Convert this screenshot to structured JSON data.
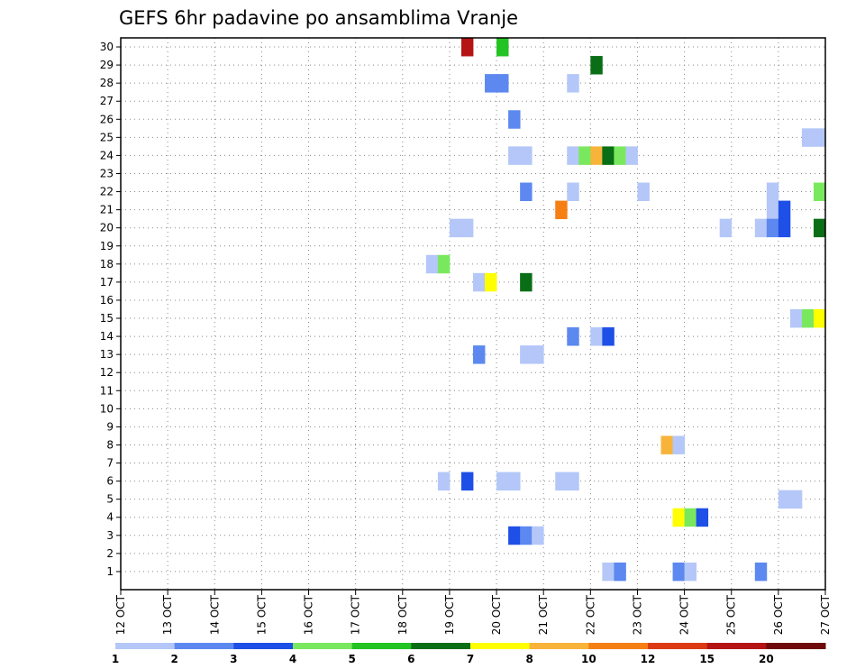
{
  "chart_data": {
    "type": "heatmap",
    "title": "GEFS 6hr padavine po ansamblima Vranje",
    "xlabel": "",
    "ylabel": "",
    "x_ticks": [
      "12 OCT",
      "13 OCT",
      "14 OCT",
      "15 OCT",
      "16 OCT",
      "17 OCT",
      "18 OCT",
      "19 OCT",
      "20 OCT",
      "21 OCT",
      "22 OCT",
      "23 OCT",
      "24 OCT",
      "25 OCT",
      "26 OCT",
      "27 OCT"
    ],
    "x_step_hours": 6,
    "y_ticks": [
      1,
      2,
      3,
      4,
      5,
      6,
      7,
      8,
      9,
      10,
      11,
      12,
      13,
      14,
      15,
      16,
      17,
      18,
      19,
      20,
      21,
      22,
      23,
      24,
      25,
      26,
      27,
      28,
      29,
      30
    ],
    "ylim": [
      0,
      30
    ],
    "grid": true,
    "legend": {
      "placement": "bottom",
      "boundaries": [
        "1",
        "2",
        "3",
        "4",
        "5",
        "6",
        "7",
        "8",
        "10",
        "12",
        "15",
        "20"
      ],
      "colors": [
        "#b4c7f8",
        "#5c88f0",
        "#1e4fe6",
        "#7ae85e",
        "#22c322",
        "#0a6e16",
        "#ffff00",
        "#f7b33a",
        "#f57f13",
        "#dc3a14",
        "#b41414",
        "#6e0a0a"
      ]
    },
    "cells": [
      {
        "member": 30,
        "date": "19 OCT",
        "hour": 6,
        "color": "#b41414"
      },
      {
        "member": 30,
        "date": "20 OCT",
        "hour": 0,
        "color": "#22c322"
      },
      {
        "member": 29,
        "date": "22 OCT",
        "hour": 0,
        "color": "#0a6e16"
      },
      {
        "member": 28,
        "date": "19 OCT",
        "hour": 18,
        "color": "#5c88f0"
      },
      {
        "member": 28,
        "date": "20 OCT",
        "hour": 0,
        "color": "#5c88f0"
      },
      {
        "member": 28,
        "date": "21 OCT",
        "hour": 12,
        "color": "#b4c7f8"
      },
      {
        "member": 26,
        "date": "20 OCT",
        "hour": 6,
        "color": "#5c88f0"
      },
      {
        "member": 25,
        "date": "26 OCT",
        "hour": 12,
        "color": "#b4c7f8"
      },
      {
        "member": 25,
        "date": "26 OCT",
        "hour": 18,
        "color": "#b4c7f8"
      },
      {
        "member": 24,
        "date": "20 OCT",
        "hour": 6,
        "color": "#b4c7f8"
      },
      {
        "member": 24,
        "date": "20 OCT",
        "hour": 12,
        "color": "#b4c7f8"
      },
      {
        "member": 24,
        "date": "21 OCT",
        "hour": 12,
        "color": "#b4c7f8"
      },
      {
        "member": 24,
        "date": "21 OCT",
        "hour": 18,
        "color": "#7ae85e"
      },
      {
        "member": 24,
        "date": "22 OCT",
        "hour": 0,
        "color": "#f7b33a"
      },
      {
        "member": 24,
        "date": "22 OCT",
        "hour": 6,
        "color": "#0a6e16"
      },
      {
        "member": 24,
        "date": "22 OCT",
        "hour": 12,
        "color": "#7ae85e"
      },
      {
        "member": 24,
        "date": "22 OCT",
        "hour": 18,
        "color": "#b4c7f8"
      },
      {
        "member": 22,
        "date": "20 OCT",
        "hour": 12,
        "color": "#5c88f0"
      },
      {
        "member": 22,
        "date": "21 OCT",
        "hour": 12,
        "color": "#b4c7f8"
      },
      {
        "member": 22,
        "date": "23 OCT",
        "hour": 0,
        "color": "#b4c7f8"
      },
      {
        "member": 22,
        "date": "25 OCT",
        "hour": 18,
        "color": "#b4c7f8"
      },
      {
        "member": 22,
        "date": "26 OCT",
        "hour": 18,
        "color": "#7ae85e"
      },
      {
        "member": 21,
        "date": "21 OCT",
        "hour": 6,
        "color": "#f57f13"
      },
      {
        "member": 21,
        "date": "25 OCT",
        "hour": 18,
        "color": "#b4c7f8"
      },
      {
        "member": 21,
        "date": "26 OCT",
        "hour": 0,
        "color": "#1e4fe6"
      },
      {
        "member": 20,
        "date": "19 OCT",
        "hour": 0,
        "color": "#b4c7f8"
      },
      {
        "member": 20,
        "date": "19 OCT",
        "hour": 6,
        "color": "#b4c7f8"
      },
      {
        "member": 20,
        "date": "24 OCT",
        "hour": 18,
        "color": "#b4c7f8"
      },
      {
        "member": 20,
        "date": "25 OCT",
        "hour": 12,
        "color": "#b4c7f8"
      },
      {
        "member": 20,
        "date": "25 OCT",
        "hour": 18,
        "color": "#5c88f0"
      },
      {
        "member": 20,
        "date": "26 OCT",
        "hour": 0,
        "color": "#1e4fe6"
      },
      {
        "member": 20,
        "date": "26 OCT",
        "hour": 18,
        "color": "#0a6e16"
      },
      {
        "member": 18,
        "date": "18 OCT",
        "hour": 12,
        "color": "#b4c7f8"
      },
      {
        "member": 18,
        "date": "18 OCT",
        "hour": 18,
        "color": "#7ae85e"
      },
      {
        "member": 17,
        "date": "19 OCT",
        "hour": 12,
        "color": "#b4c7f8"
      },
      {
        "member": 17,
        "date": "19 OCT",
        "hour": 18,
        "color": "#ffff00"
      },
      {
        "member": 17,
        "date": "20 OCT",
        "hour": 12,
        "color": "#0a6e16"
      },
      {
        "member": 15,
        "date": "26 OCT",
        "hour": 6,
        "color": "#b4c7f8"
      },
      {
        "member": 15,
        "date": "26 OCT",
        "hour": 12,
        "color": "#7ae85e"
      },
      {
        "member": 15,
        "date": "26 OCT",
        "hour": 18,
        "color": "#ffff00"
      },
      {
        "member": 14,
        "date": "21 OCT",
        "hour": 12,
        "color": "#5c88f0"
      },
      {
        "member": 14,
        "date": "22 OCT",
        "hour": 0,
        "color": "#b4c7f8"
      },
      {
        "member": 14,
        "date": "22 OCT",
        "hour": 6,
        "color": "#1e4fe6"
      },
      {
        "member": 13,
        "date": "19 OCT",
        "hour": 12,
        "color": "#5c88f0"
      },
      {
        "member": 13,
        "date": "20 OCT",
        "hour": 12,
        "color": "#b4c7f8"
      },
      {
        "member": 13,
        "date": "20 OCT",
        "hour": 18,
        "color": "#b4c7f8"
      },
      {
        "member": 8,
        "date": "23 OCT",
        "hour": 12,
        "color": "#f7b33a"
      },
      {
        "member": 8,
        "date": "23 OCT",
        "hour": 18,
        "color": "#b4c7f8"
      },
      {
        "member": 6,
        "date": "18 OCT",
        "hour": 18,
        "color": "#b4c7f8"
      },
      {
        "member": 6,
        "date": "19 OCT",
        "hour": 6,
        "color": "#1e4fe6"
      },
      {
        "member": 6,
        "date": "20 OCT",
        "hour": 0,
        "color": "#b4c7f8"
      },
      {
        "member": 6,
        "date": "20 OCT",
        "hour": 6,
        "color": "#b4c7f8"
      },
      {
        "member": 6,
        "date": "21 OCT",
        "hour": 6,
        "color": "#b4c7f8"
      },
      {
        "member": 6,
        "date": "21 OCT",
        "hour": 12,
        "color": "#b4c7f8"
      },
      {
        "member": 5,
        "date": "26 OCT",
        "hour": 0,
        "color": "#b4c7f8"
      },
      {
        "member": 5,
        "date": "26 OCT",
        "hour": 6,
        "color": "#b4c7f8"
      },
      {
        "member": 4,
        "date": "23 OCT",
        "hour": 18,
        "color": "#ffff00"
      },
      {
        "member": 4,
        "date": "24 OCT",
        "hour": 0,
        "color": "#7ae85e"
      },
      {
        "member": 4,
        "date": "24 OCT",
        "hour": 6,
        "color": "#1e4fe6"
      },
      {
        "member": 3,
        "date": "20 OCT",
        "hour": 6,
        "color": "#1e4fe6"
      },
      {
        "member": 3,
        "date": "20 OCT",
        "hour": 12,
        "color": "#5c88f0"
      },
      {
        "member": 3,
        "date": "20 OCT",
        "hour": 18,
        "color": "#b4c7f8"
      },
      {
        "member": 1,
        "date": "22 OCT",
        "hour": 6,
        "color": "#b4c7f8"
      },
      {
        "member": 1,
        "date": "22 OCT",
        "hour": 12,
        "color": "#5c88f0"
      },
      {
        "member": 1,
        "date": "23 OCT",
        "hour": 18,
        "color": "#5c88f0"
      },
      {
        "member": 1,
        "date": "24 OCT",
        "hour": 0,
        "color": "#b4c7f8"
      },
      {
        "member": 1,
        "date": "25 OCT",
        "hour": 12,
        "color": "#5c88f0"
      }
    ]
  }
}
